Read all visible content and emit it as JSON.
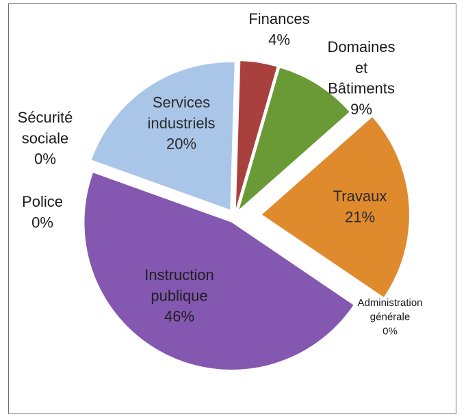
{
  "chart_data": {
    "type": "pie",
    "title": "",
    "slices": [
      {
        "lines": [
          "Finances"
        ],
        "pct_label": "4%",
        "value": 4,
        "color": "#a8403e"
      },
      {
        "lines": [
          "Domaines",
          "et",
          "Bâtiments"
        ],
        "pct_label": "9%",
        "value": 9,
        "color": "#6a9a35"
      },
      {
        "lines": [
          "Travaux"
        ],
        "pct_label": "21%",
        "value": 21,
        "color": "#e08a2e"
      },
      {
        "lines": [
          "Administration",
          "générale"
        ],
        "pct_label": "0%",
        "value": 0,
        "color": "#4a6fa5"
      },
      {
        "lines": [
          "Instruction",
          "publique"
        ],
        "pct_label": "46%",
        "value": 46,
        "color": "#8458b0"
      },
      {
        "lines": [
          "Police"
        ],
        "pct_label": "0%",
        "value": 0,
        "color": "#3a8fa0"
      },
      {
        "lines": [
          "Sécurité",
          "sociale"
        ],
        "pct_label": "0%",
        "value": 0,
        "color": "#c0504d"
      },
      {
        "lines": [
          "Services",
          "industriels"
        ],
        "pct_label": "20%",
        "value": 20,
        "color": "#a9c6e8"
      }
    ]
  }
}
